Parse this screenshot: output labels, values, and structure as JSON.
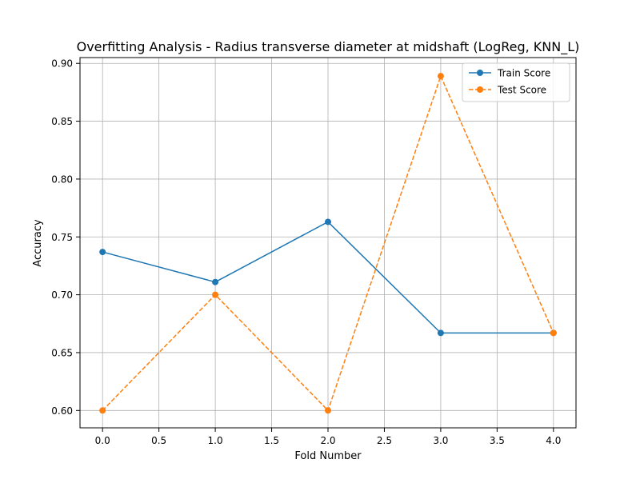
{
  "chart_data": {
    "type": "line",
    "title": "Overfitting Analysis - Radius transverse diameter at midshaft (LogReg, KNN_L)",
    "xlabel": "Fold Number",
    "ylabel": "Accuracy",
    "x": [
      0,
      1,
      2,
      3,
      4
    ],
    "xlim": [
      -0.2,
      4.2
    ],
    "ylim": [
      0.585,
      0.905
    ],
    "x_ticks": [
      0.0,
      0.5,
      1.0,
      1.5,
      2.0,
      2.5,
      3.0,
      3.5,
      4.0
    ],
    "x_tick_labels": [
      "0.0",
      "0.5",
      "1.0",
      "1.5",
      "2.0",
      "2.5",
      "3.0",
      "3.5",
      "4.0"
    ],
    "y_ticks": [
      0.6,
      0.65,
      0.7,
      0.75,
      0.8,
      0.85,
      0.9
    ],
    "y_tick_labels": [
      "0.60",
      "0.65",
      "0.70",
      "0.75",
      "0.80",
      "0.85",
      "0.90"
    ],
    "grid": true,
    "legend_position": "top-right",
    "series": [
      {
        "name": "Train Score",
        "values": [
          0.737,
          0.711,
          0.763,
          0.667,
          0.667
        ],
        "color": "#1f77b4",
        "line_style": "solid",
        "marker": "circle"
      },
      {
        "name": "Test Score",
        "values": [
          0.6,
          0.7,
          0.6,
          0.889,
          0.667
        ],
        "color": "#ff7f0e",
        "line_style": "dashed",
        "marker": "circle"
      }
    ]
  }
}
